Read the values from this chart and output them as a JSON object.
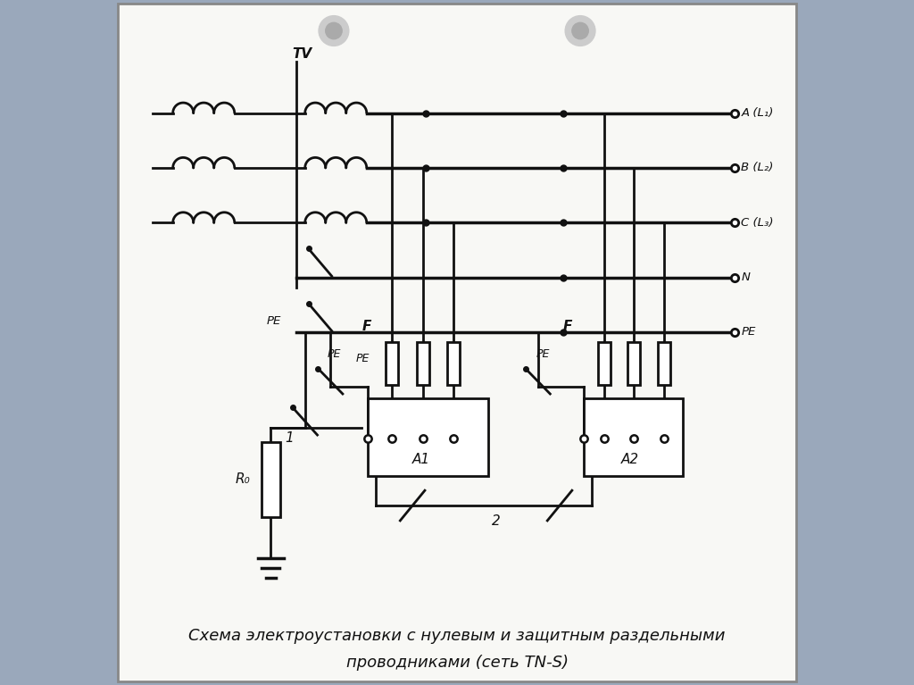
{
  "bg_color": "#9aa8bb",
  "paper_color": "#f8f8f5",
  "paper_border": "#888888",
  "line_color": "#111111",
  "caption_line1": "Схема электроустановки с нулевым и защитным раздельными",
  "caption_line2": "проводниками (сеть TN-S)",
  "labels": {
    "AL1": "A (L₁)",
    "BL2": "B (L₂)",
    "CL3": "C (L₃)",
    "N": "N",
    "PE": "PE",
    "TV": "TV",
    "F1": "F",
    "F2": "F",
    "PE_left": "PE",
    "PE_inner1": "PE",
    "PE_inner2": "PE",
    "A1": "A1",
    "A2": "A2",
    "R0": "R₀",
    "label1": "1",
    "label2": "2"
  }
}
